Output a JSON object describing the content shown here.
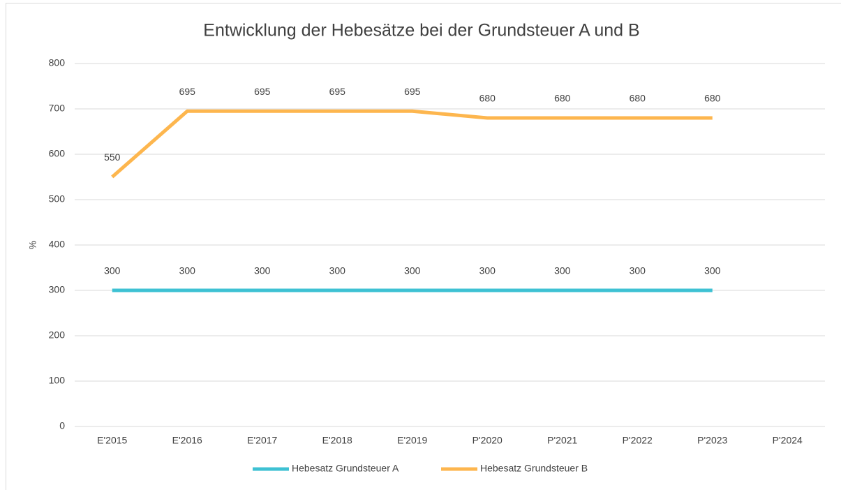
{
  "chart_data": {
    "type": "line",
    "title": "Entwicklung der Hebesätze bei der Grundsteuer A und B",
    "y_label": "%",
    "categories": [
      "E'2015",
      "E'2016",
      "E'2017",
      "E'2018",
      "E'2019",
      "P'2020",
      "P'2021",
      "P'2022",
      "P'2023",
      "P'2024"
    ],
    "series": [
      {
        "name": "Hebesatz Grundsteuer A",
        "color": "#3ec1d3",
        "values": [
          300,
          300,
          300,
          300,
          300,
          300,
          300,
          300,
          300,
          null
        ]
      },
      {
        "name": "Hebesatz Grundsteuer B",
        "color": "#fdb64e",
        "values": [
          550,
          695,
          695,
          695,
          695,
          680,
          680,
          680,
          680,
          null
        ]
      }
    ],
    "ylim": [
      0,
      800
    ],
    "yticks": [
      0,
      100,
      200,
      300,
      400,
      500,
      600,
      700,
      800
    ],
    "grid": true,
    "legend": "bottom",
    "data_labels": true
  }
}
